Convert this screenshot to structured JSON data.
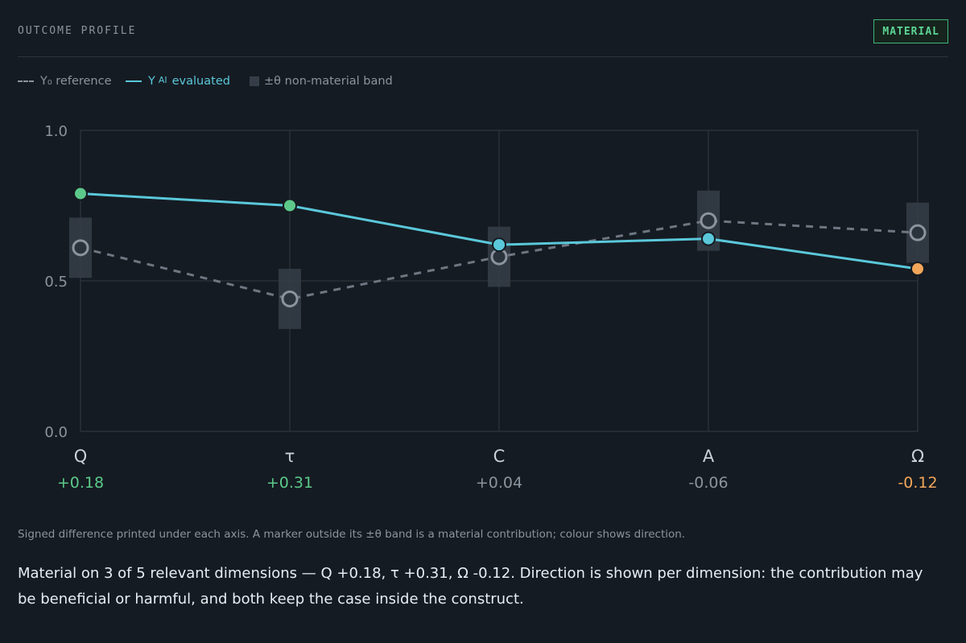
{
  "header": {
    "title": "OUTCOME PROFILE",
    "badge": "MATERIAL"
  },
  "legend": {
    "reference": "Y₀ reference",
    "evaluated_prefix": "Y",
    "evaluated_sub": "AI",
    "evaluated_suffix": "evaluated",
    "band": "±θ non-material band"
  },
  "colors": {
    "background": "#151b22",
    "evaluated_line": "#5ac8da",
    "reference_line": "#8b949e",
    "band": "#353e48",
    "positive": "#5cc98a",
    "negative": "#f2a65a",
    "neutral": "#8b949e",
    "badge": "#3fb377"
  },
  "chart_data": {
    "type": "line",
    "categories": [
      "Q",
      "τ",
      "C",
      "A",
      "Ω"
    ],
    "y_ticks": [
      "0.0",
      "0.5",
      "1.0"
    ],
    "ylim": [
      0,
      1
    ],
    "grid": true,
    "series": [
      {
        "name": "Y₀ reference",
        "style": "dashed",
        "values": [
          0.61,
          0.44,
          0.58,
          0.7,
          0.66
        ]
      },
      {
        "name": "Y AI evaluated",
        "style": "solid",
        "values": [
          0.79,
          0.75,
          0.62,
          0.64,
          0.54
        ]
      }
    ],
    "band_theta": 0.1,
    "differences": [
      "+0.18",
      "+0.31",
      "+0.04",
      "-0.06",
      "-0.12"
    ],
    "direction": [
      "positive",
      "positive",
      "neutral",
      "neutral",
      "negative"
    ]
  },
  "caption": "Signed difference printed under each axis. A marker outside its ±θ band is a material contribution; colour shows direction.",
  "summary": "Material on 3 of 5 relevant dimensions — Q +0.18, τ +0.31, Ω -0.12. Direction is shown per dimension: the contribution may be beneficial or harmful, and both keep the case inside the construct."
}
